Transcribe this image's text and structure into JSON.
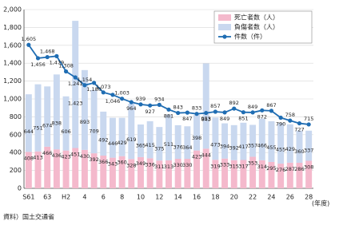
{
  "chart_data": {
    "type": "bar",
    "categories": [
      "S61",
      null,
      "63",
      null,
      "H2",
      null,
      "4",
      null,
      "6",
      null,
      "8",
      null,
      "10",
      null,
      "12",
      null,
      "14",
      null,
      "16",
      null,
      "18",
      null,
      "20",
      null,
      "22",
      null,
      "24",
      null,
      "26",
      null,
      "28"
    ],
    "x_label": "(年度)",
    "source": "資料）国土交通省",
    "series": [
      {
        "name": "死亡者数（人）",
        "type": "bar",
        "color": "#f4b9cc",
        "values": [
          408,
          413,
          466,
          436,
          423,
          451,
          430,
          392,
          366,
          343,
          360,
          328,
          349,
          336,
          311,
          313,
          330,
          330,
          423,
          444,
          319,
          333,
          315,
          317,
          353,
          314,
          295,
          276,
          287,
          286,
          308
        ]
      },
      {
        "name": "負傷者数（人）",
        "type": "bar",
        "color": "#c9d8ef",
        "values": [
          644,
          751,
          674,
          838,
          606,
          1423,
          893,
          709,
          492,
          446,
          429,
          619,
          365,
          415,
          375,
          511,
          376,
          364,
          398,
          953,
          473,
          394,
          392,
          417,
          357,
          466,
          455,
          455,
          429,
          360,
          337
        ],
        "value_labels": [
          "644",
          "751",
          "674",
          "838",
          "606",
          "1,423",
          "893",
          "709",
          "492",
          "446",
          "429",
          "619",
          "365",
          "415",
          "375",
          "511",
          "376",
          "364",
          "398",
          "953",
          "473",
          "394",
          "392",
          "417",
          "357",
          "466",
          "455",
          "455",
          "429",
          "360",
          "337"
        ]
      },
      {
        "name": "件数（件）",
        "type": "line",
        "color": "#1f6db3",
        "values": [
          1605,
          1456,
          1468,
          1479,
          1308,
          1241,
          1154,
          1180,
          1073,
          1046,
          1003,
          964,
          939,
          927,
          934,
          881,
          843,
          847,
          833,
          843,
          857,
          849,
          892,
          851,
          849,
          872,
          867,
          790,
          758,
          727,
          715
        ],
        "value_labels": [
          "1,605",
          "1,456",
          "1,468",
          "1,479",
          "1,308",
          "1,241",
          "1,154",
          "1,180",
          "1,073",
          "1,046",
          "1,003",
          "964",
          "939",
          "927",
          "934",
          "881",
          "843",
          "847",
          "833",
          "843",
          "857",
          "849",
          "892",
          "851",
          "849",
          "872",
          "867",
          "790",
          "758",
          "727",
          "715"
        ]
      }
    ],
    "ylim": [
      0,
      2000
    ],
    "yticks": [
      0,
      200,
      400,
      600,
      800,
      {
        "value": 1000,
        "label": "1,000"
      },
      {
        "value": 1200,
        "label": "1,200"
      },
      {
        "value": 1400,
        "label": "1,400"
      },
      {
        "value": 1600,
        "label": "1,600"
      },
      {
        "value": 1800,
        "label": "1,800"
      },
      {
        "value": 2000,
        "label": "2,000"
      }
    ],
    "legend": "top-right"
  }
}
